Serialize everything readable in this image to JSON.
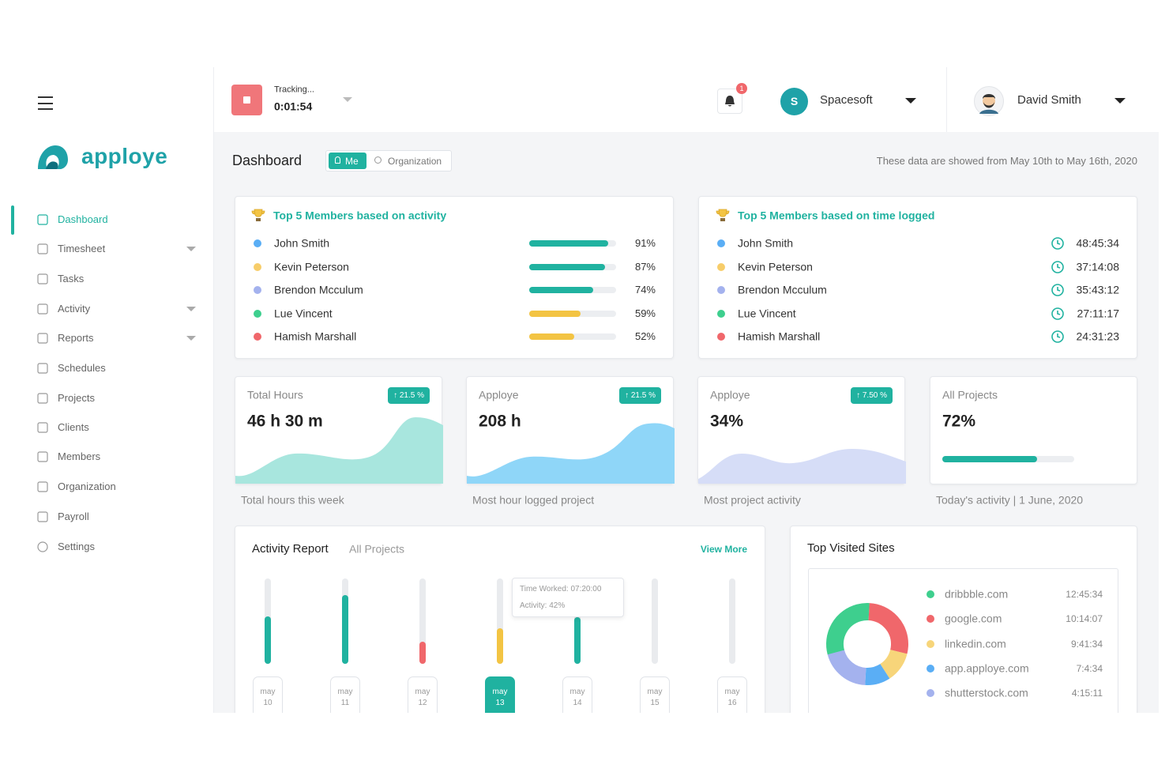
{
  "sidebar": {
    "brand": "apploye",
    "menu": [
      "Dashboard",
      "Timesheet",
      "Tasks",
      "Activity",
      "Reports",
      "Schedules",
      "Projects",
      "Clients",
      "Members",
      "Organization",
      "Payroll",
      "Settings"
    ]
  },
  "header": {
    "tracking_label": "Tracking...",
    "timer": "0:01:54",
    "notification_count": 1,
    "org_initial": "S",
    "org_name": "Spacesoft",
    "user_name": "David Smith"
  },
  "dashboard": {
    "title": "Dashboard",
    "toggle": [
      "Me",
      "Organization"
    ],
    "date_range": "These data are showed from May 10th to May 16th, 2020"
  },
  "top_activity": {
    "title": "Top 5 Members based on activity",
    "xlim": [
      0,
      100
    ],
    "members": [
      {
        "name": "John Smith",
        "color": "#5aaef5",
        "value": 91,
        "label": "91%",
        "bar_color": "#20b2a0"
      },
      {
        "name": "Kevin Peterson",
        "color": "#f7cd6a",
        "value": 87,
        "label": "87%",
        "bar_color": "#20b2a0"
      },
      {
        "name": "Brendon Mcculum",
        "color": "#a4b2ee",
        "value": 74,
        "label": "74%",
        "bar_color": "#20b2a0"
      },
      {
        "name": "Lue Vincent",
        "color": "#3ecf8e",
        "value": 59,
        "label": "59%",
        "bar_color": "#f3c443"
      },
      {
        "name": "Hamish Marshall",
        "color": "#f0676b",
        "value": 52,
        "label": "52%",
        "bar_color": "#f3c443"
      }
    ]
  },
  "top_time": {
    "title": "Top 5 Members based on time logged",
    "members": [
      {
        "name": "John Smith",
        "color": "#5aaef5",
        "time": "48:45:34"
      },
      {
        "name": "Kevin Peterson",
        "color": "#f7cd6a",
        "time": "37:14:08"
      },
      {
        "name": "Brendon Mcculum",
        "color": "#a4b2ee",
        "time": "35:43:12"
      },
      {
        "name": "Lue Vincent",
        "color": "#3ecf8e",
        "time": "27:11:17"
      },
      {
        "name": "Hamish Marshall",
        "color": "#f0676b",
        "time": "24:31:23"
      }
    ]
  },
  "cards": [
    {
      "title": "Total Hours",
      "value": "46 h 30 m",
      "badge": "↑ 21.5 %",
      "caption": "Total hours this week",
      "color": "#a8e6de"
    },
    {
      "title": "Apploye",
      "value": "208 h",
      "badge": "↑ 21.5 %",
      "caption": "Most hour logged project",
      "color": "#8fd6f8"
    },
    {
      "title": "Apploye",
      "value": "34%",
      "badge": "↑ 7.50 %",
      "caption": "Most project activity",
      "color": "#d6ddf7"
    },
    {
      "title": "All Projects",
      "value": "72%",
      "caption": "Today's activity | 1 June, 2020",
      "progress": 72,
      "xlim": [
        0,
        100
      ],
      "color": "#20b2a0"
    }
  ],
  "activity_report": {
    "title": "Activity Report",
    "subtitle": "All Projects",
    "link": "View More",
    "ylim": [
      0,
      100
    ],
    "bars": [
      {
        "month": "may",
        "day": "10",
        "value": 56,
        "color": "#20b2a0"
      },
      {
        "month": "may",
        "day": "11",
        "value": 81,
        "color": "#20b2a0"
      },
      {
        "month": "may",
        "day": "12",
        "value": 26,
        "color": "#f0676b"
      },
      {
        "month": "may",
        "day": "13",
        "value": 42,
        "color": "#f3c443"
      },
      {
        "month": "may",
        "day": "14",
        "value": 55,
        "color": "#20b2a0"
      },
      {
        "month": "may",
        "day": "15",
        "value": 0,
        "color": "#20b2a0"
      },
      {
        "month": "may",
        "day": "16",
        "value": 0,
        "color": "#20b2a0"
      }
    ],
    "tooltip": [
      "Time Worked: 07:20:00",
      "Activity: 42%"
    ]
  },
  "top_sites": {
    "title": "Top Visited Sites",
    "sites": [
      {
        "name": "dribbble.com",
        "time": "12:45:34",
        "color": "#3ecf8e",
        "share": 30
      },
      {
        "name": "google.com",
        "time": "10:14:07",
        "color": "#f0676b",
        "share": 28
      },
      {
        "name": "linkedin.com",
        "time": "9:41:34",
        "color": "#f7d57a",
        "share": 12
      },
      {
        "name": "app.apploye.com",
        "time": "7:4:34",
        "color": "#5aaef5",
        "share": 10
      },
      {
        "name": "shutterstock.com",
        "time": "4:15:11",
        "color": "#a4b2ee",
        "share": 20
      }
    ]
  }
}
